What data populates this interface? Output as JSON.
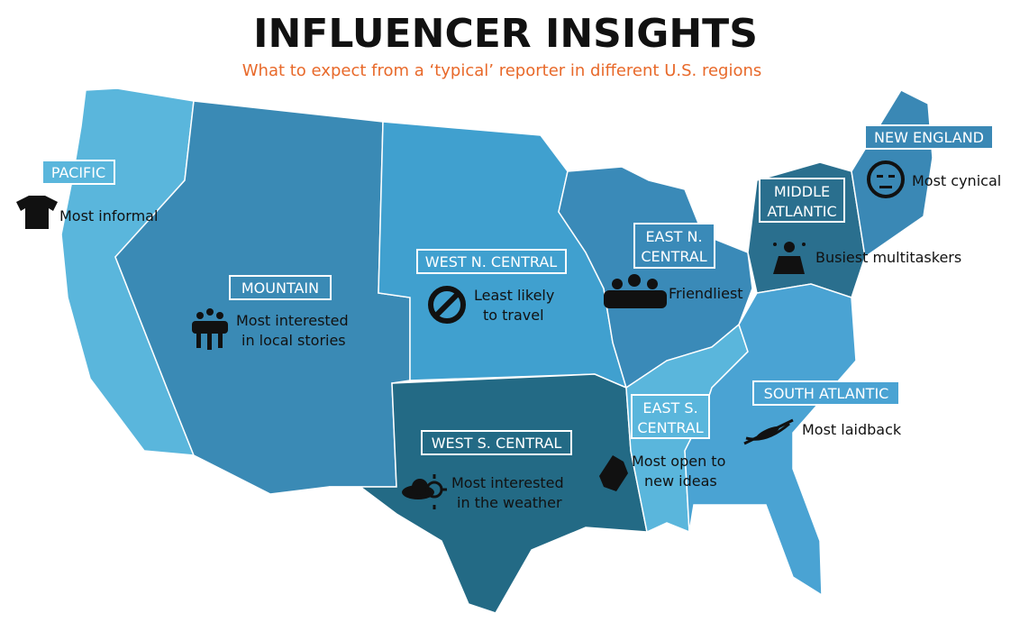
{
  "header": {
    "title": "INFLUENCER INSIGHTS",
    "subtitle": "What to expect from a ‘typical’ reporter in different U.S. regions"
  },
  "regions": [
    {
      "name": [
        "PACIFIC"
      ],
      "description": [
        "Most informal"
      ]
    },
    {
      "name": [
        "MOUNTAIN"
      ],
      "description": [
        "Most interested",
        "in local stories"
      ]
    },
    {
      "name": [
        "WEST N. CENTRAL"
      ],
      "description": [
        "Least likely",
        "to travel"
      ]
    },
    {
      "name": [
        "EAST N.",
        "CENTRAL"
      ],
      "description": [
        "Friendliest"
      ]
    },
    {
      "name": [
        "MIDDLE",
        "ATLANTIC"
      ],
      "description": [
        "Busiest multitaskers"
      ]
    },
    {
      "name": [
        "NEW ENGLAND"
      ],
      "description": [
        "Most cynical"
      ]
    },
    {
      "name": [
        "WEST S. CENTRAL"
      ],
      "description": [
        "Most interested",
        "in the weather"
      ]
    },
    {
      "name": [
        "EAST S.",
        "CENTRAL"
      ],
      "description": [
        "Most open to",
        "new ideas"
      ]
    },
    {
      "name": [
        "SOUTH ATLANTIC"
      ],
      "description": [
        "Most laidback"
      ]
    }
  ]
}
